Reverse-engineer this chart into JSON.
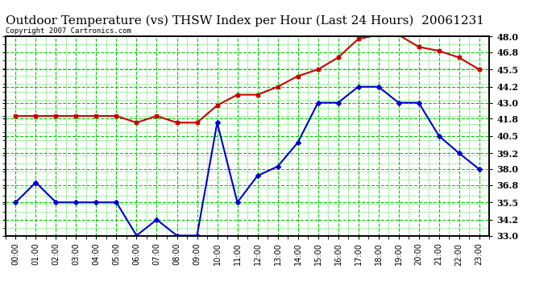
{
  "title": "Outdoor Temperature (vs) THSW Index per Hour (Last 24 Hours)  20061231",
  "copyright": "Copyright 2007 Cartronics.com",
  "hours": [
    "00:00",
    "01:00",
    "02:00",
    "03:00",
    "04:00",
    "05:00",
    "06:00",
    "07:00",
    "08:00",
    "09:00",
    "10:00",
    "11:00",
    "12:00",
    "13:00",
    "14:00",
    "15:00",
    "16:00",
    "17:00",
    "18:00",
    "19:00",
    "20:00",
    "21:00",
    "22:00",
    "23:00"
  ],
  "temp_red": [
    42.0,
    42.0,
    42.0,
    42.0,
    42.0,
    42.0,
    41.5,
    42.0,
    41.5,
    41.5,
    42.8,
    43.6,
    43.6,
    44.2,
    45.0,
    45.5,
    46.4,
    47.8,
    48.1,
    48.1,
    47.2,
    46.9,
    46.4,
    45.5
  ],
  "thsw_blue": [
    35.5,
    37.0,
    35.5,
    35.5,
    35.5,
    35.5,
    33.0,
    34.2,
    33.0,
    33.0,
    41.5,
    35.5,
    37.5,
    38.2,
    40.0,
    43.0,
    43.0,
    44.2,
    44.2,
    43.0,
    43.0,
    40.5,
    39.2,
    38.0
  ],
  "ylim": [
    33.0,
    48.0
  ],
  "yticks": [
    33.0,
    34.2,
    35.5,
    36.8,
    38.0,
    39.2,
    40.5,
    41.8,
    43.0,
    44.2,
    45.5,
    46.8,
    48.0
  ],
  "background_color": "#ffffff",
  "plot_bg_color": "#ffffff",
  "grid_color": "#00cc00",
  "line_color_red": "#cc0000",
  "line_color_blue": "#0000cc",
  "title_color": "#000000",
  "border_color": "#000000",
  "title_fontsize": 11,
  "copyright_fontsize": 6.5,
  "tick_fontsize": 8,
  "xtick_fontsize": 7
}
